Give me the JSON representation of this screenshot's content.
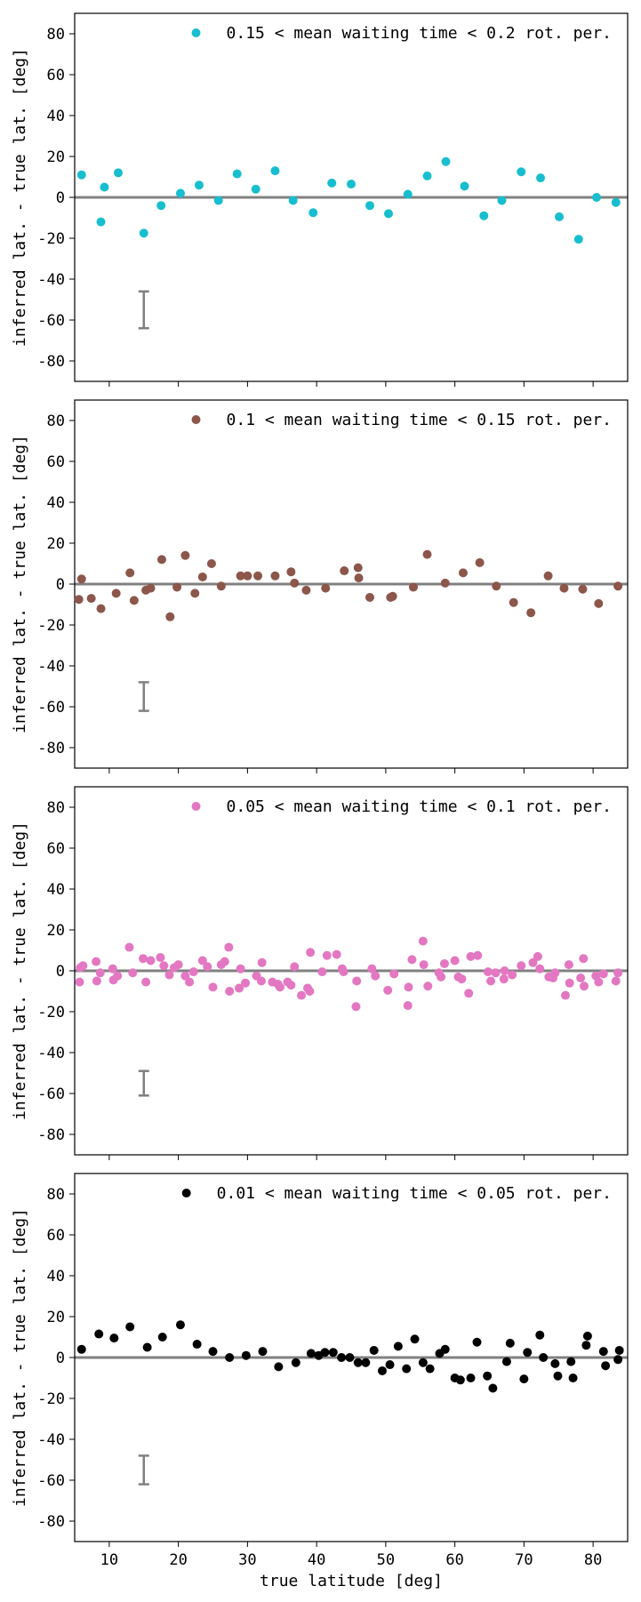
{
  "figure": {
    "xlabel": "true latitude [deg]",
    "x_ticks": [
      10,
      20,
      30,
      40,
      50,
      60,
      70,
      80
    ],
    "y_ticks": [
      -80,
      -60,
      -40,
      -20,
      0,
      20,
      40,
      60,
      80
    ]
  },
  "chart_data": [
    {
      "type": "scatter",
      "title": "",
      "xlabel": "",
      "ylabel": "inferred lat. - true lat. [deg]",
      "xlim": [
        5,
        85
      ],
      "ylim": [
        -90,
        90
      ],
      "zero_line": true,
      "grid": false,
      "legend_position": "top-right",
      "error_bar": {
        "x": 15,
        "y_low": -64,
        "y_high": -46,
        "color": "#808080"
      },
      "series": [
        {
          "name": "0.15 < mean waiting time < 0.2 rot. per.",
          "color": "#17becf",
          "points": [
            [
              6,
              11
            ],
            [
              8.8,
              -12
            ],
            [
              9.3,
              5
            ],
            [
              11.3,
              12
            ],
            [
              15,
              -17.5
            ],
            [
              17.5,
              -4
            ],
            [
              20.3,
              2
            ],
            [
              23,
              6
            ],
            [
              25.8,
              -1.5
            ],
            [
              28.5,
              11.5
            ],
            [
              31.2,
              4
            ],
            [
              34,
              13
            ],
            [
              36.6,
              -1.5
            ],
            [
              39.5,
              -7.5
            ],
            [
              42.2,
              7
            ],
            [
              45,
              6.5
            ],
            [
              47.7,
              -4
            ],
            [
              50.4,
              -8
            ],
            [
              53.2,
              1.5
            ],
            [
              56,
              10.5
            ],
            [
              58.7,
              17.5
            ],
            [
              61.4,
              5.5
            ],
            [
              64.2,
              -9
            ],
            [
              66.8,
              -1.5
            ],
            [
              69.6,
              12.5
            ],
            [
              72.4,
              9.5
            ],
            [
              75.1,
              -9.5
            ],
            [
              77.9,
              -20.5
            ],
            [
              80.5,
              0
            ],
            [
              83.3,
              -2.5
            ]
          ]
        }
      ]
    },
    {
      "type": "scatter",
      "title": "",
      "xlabel": "",
      "ylabel": "inferred lat. - true lat. [deg]",
      "xlim": [
        5,
        85
      ],
      "ylim": [
        -90,
        90
      ],
      "zero_line": true,
      "grid": false,
      "legend_position": "top-right",
      "error_bar": {
        "x": 15,
        "y_low": -62,
        "y_high": -48,
        "color": "#808080"
      },
      "series": [
        {
          "name": "0.1 < mean waiting time < 0.15 rot. per.",
          "color": "#8c564b",
          "points": [
            [
              5.6,
              -7.5
            ],
            [
              6,
              2.5
            ],
            [
              7.4,
              -7
            ],
            [
              8.8,
              -12
            ],
            [
              11,
              -4.5
            ],
            [
              13,
              5.5
            ],
            [
              13.6,
              -8
            ],
            [
              15.3,
              -3
            ],
            [
              16,
              -2
            ],
            [
              17.6,
              12
            ],
            [
              18.8,
              -16
            ],
            [
              19.8,
              -1.5
            ],
            [
              21,
              14
            ],
            [
              22.4,
              -4.5
            ],
            [
              23.5,
              3.5
            ],
            [
              24.8,
              10
            ],
            [
              26.2,
              -1
            ],
            [
              29,
              4
            ],
            [
              30,
              4
            ],
            [
              31.5,
              4
            ],
            [
              34,
              4
            ],
            [
              36.3,
              6
            ],
            [
              36.8,
              0.5
            ],
            [
              38.5,
              -3
            ],
            [
              41.3,
              -2
            ],
            [
              44,
              6.5
            ],
            [
              46,
              8
            ],
            [
              46.1,
              3
            ],
            [
              47.7,
              -6.5
            ],
            [
              50.7,
              -6.5
            ],
            [
              51,
              -6
            ],
            [
              54,
              -1.5
            ],
            [
              56,
              14.5
            ],
            [
              58.6,
              0.5
            ],
            [
              61.2,
              5.5
            ],
            [
              63.6,
              10.5
            ],
            [
              66,
              -1
            ],
            [
              68.5,
              -9
            ],
            [
              71,
              -14
            ],
            [
              73.5,
              4
            ],
            [
              75.8,
              -2
            ],
            [
              78.5,
              -2.5
            ],
            [
              80.8,
              -9.5
            ],
            [
              83.6,
              -1
            ]
          ]
        }
      ]
    },
    {
      "type": "scatter",
      "title": "",
      "xlabel": "",
      "ylabel": "inferred lat. - true lat. [deg]",
      "xlim": [
        5,
        85
      ],
      "ylim": [
        -90,
        90
      ],
      "zero_line": true,
      "grid": false,
      "legend_position": "top-right",
      "error_bar": {
        "x": 15,
        "y_low": -61,
        "y_high": -49,
        "color": "#808080"
      },
      "series": [
        {
          "name": "0.05 < mean waiting time < 0.1 rot. per.",
          "color": "#e377c2",
          "points": [
            [
              5.7,
              -5.5
            ],
            [
              5.8,
              1.5
            ],
            [
              6.2,
              2.5
            ],
            [
              8.1,
              4.5
            ],
            [
              8.2,
              -5
            ],
            [
              8.7,
              -1
            ],
            [
              10.5,
              1
            ],
            [
              10.6,
              -4.5
            ],
            [
              11.2,
              -2.5
            ],
            [
              12.9,
              11.5
            ],
            [
              13.4,
              -1
            ],
            [
              14.9,
              6
            ],
            [
              15.3,
              -5.5
            ],
            [
              16,
              5
            ],
            [
              17.4,
              6.5
            ],
            [
              17.9,
              2.5
            ],
            [
              18.7,
              -2
            ],
            [
              19.4,
              1.5
            ],
            [
              20,
              3
            ],
            [
              21,
              -2.5
            ],
            [
              21.6,
              -5.5
            ],
            [
              22.2,
              -0.5
            ],
            [
              23.5,
              5
            ],
            [
              24.2,
              2
            ],
            [
              25,
              -8
            ],
            [
              26.2,
              3
            ],
            [
              26.7,
              4.5
            ],
            [
              27.3,
              11.5
            ],
            [
              27.4,
              -10
            ],
            [
              28.8,
              -8.5
            ],
            [
              29,
              1
            ],
            [
              29.7,
              -6
            ],
            [
              31.3,
              -2.5
            ],
            [
              32,
              -5
            ],
            [
              32.1,
              4
            ],
            [
              33.6,
              -5.5
            ],
            [
              34.4,
              -6.5
            ],
            [
              34.7,
              -8
            ],
            [
              35.8,
              -5.5
            ],
            [
              36.3,
              -7
            ],
            [
              36.8,
              2
            ],
            [
              37.8,
              -12
            ],
            [
              38.7,
              -8.5
            ],
            [
              39,
              -10
            ],
            [
              39.1,
              9
            ],
            [
              40.8,
              -0.5
            ],
            [
              41.5,
              7.5
            ],
            [
              42.9,
              8
            ],
            [
              43.7,
              1
            ],
            [
              43.9,
              -0.5
            ],
            [
              45.7,
              -17.5
            ],
            [
              45.8,
              -5
            ],
            [
              48,
              1
            ],
            [
              48.5,
              -2.5
            ],
            [
              50.3,
              -9.5
            ],
            [
              51.2,
              -1.5
            ],
            [
              53.2,
              -17
            ],
            [
              53.3,
              -8
            ],
            [
              53.8,
              5.5
            ],
            [
              55.4,
              14.5
            ],
            [
              55.5,
              3
            ],
            [
              56.1,
              -7.5
            ],
            [
              57.7,
              -1
            ],
            [
              58,
              -3
            ],
            [
              58.5,
              3.5
            ],
            [
              60,
              5
            ],
            [
              60.5,
              -3
            ],
            [
              61,
              -4
            ],
            [
              62,
              -11
            ],
            [
              62.3,
              7
            ],
            [
              63.3,
              7.5
            ],
            [
              64.8,
              -0.5
            ],
            [
              65.2,
              -5
            ],
            [
              65.9,
              -1
            ],
            [
              67.1,
              -4
            ],
            [
              67.2,
              0
            ],
            [
              68.3,
              -2
            ],
            [
              69.6,
              2.5
            ],
            [
              71.3,
              4
            ],
            [
              72,
              7
            ],
            [
              72.3,
              1
            ],
            [
              73.6,
              -3
            ],
            [
              74.2,
              -3.5
            ],
            [
              74.5,
              -1
            ],
            [
              76,
              -12
            ],
            [
              76.5,
              3
            ],
            [
              76.6,
              -6
            ],
            [
              78.2,
              -3.5
            ],
            [
              78.6,
              6
            ],
            [
              78.7,
              -7.5
            ],
            [
              80.4,
              -2.5
            ],
            [
              80.8,
              -5.5
            ],
            [
              81.5,
              -1.5
            ],
            [
              83.3,
              -5
            ],
            [
              83.6,
              -1
            ]
          ]
        }
      ]
    },
    {
      "type": "scatter",
      "title": "",
      "xlabel": "true latitude [deg]",
      "ylabel": "inferred lat. - true lat. [deg]",
      "xlim": [
        5,
        85
      ],
      "ylim": [
        -90,
        90
      ],
      "zero_line": true,
      "grid": false,
      "legend_position": "top-right",
      "error_bar": {
        "x": 15,
        "y_low": -62,
        "y_high": -48,
        "color": "#808080"
      },
      "series": [
        {
          "name": "0.01 < mean waiting time < 0.05 rot. per.",
          "color": "#000000",
          "points": [
            [
              6,
              4
            ],
            [
              8.5,
              11.5
            ],
            [
              10.7,
              9.5
            ],
            [
              13,
              15
            ],
            [
              15.5,
              5
            ],
            [
              17.7,
              10
            ],
            [
              20.3,
              16
            ],
            [
              22.7,
              6.5
            ],
            [
              25,
              3
            ],
            [
              27.4,
              0
            ],
            [
              29.8,
              1
            ],
            [
              32.2,
              3
            ],
            [
              34.5,
              -4.5
            ],
            [
              37,
              -2.5
            ],
            [
              39.2,
              2
            ],
            [
              40.3,
              1
            ],
            [
              41.2,
              2.5
            ],
            [
              42.4,
              2.5
            ],
            [
              43.6,
              0
            ],
            [
              44.8,
              0
            ],
            [
              46,
              -2.5
            ],
            [
              47.1,
              -2.5
            ],
            [
              48.3,
              3.5
            ],
            [
              49.5,
              -6.5
            ],
            [
              50.6,
              -3.5
            ],
            [
              51.8,
              5.5
            ],
            [
              53,
              -5.5
            ],
            [
              54.2,
              9
            ],
            [
              55.4,
              -2.5
            ],
            [
              56.4,
              -5.5
            ],
            [
              57.8,
              2
            ],
            [
              58.6,
              4
            ],
            [
              60,
              -10
            ],
            [
              60.8,
              -11
            ],
            [
              62.3,
              -10
            ],
            [
              63.2,
              7.5
            ],
            [
              64.7,
              -9
            ],
            [
              65.5,
              -15
            ],
            [
              67.5,
              -2
            ],
            [
              68,
              7
            ],
            [
              70,
              -10.5
            ],
            [
              70.5,
              2.5
            ],
            [
              72.3,
              11
            ],
            [
              72.8,
              0
            ],
            [
              74.5,
              -3
            ],
            [
              74.9,
              -9
            ],
            [
              76.8,
              -2
            ],
            [
              77.1,
              -10
            ],
            [
              79,
              6
            ],
            [
              79.2,
              10.5
            ],
            [
              81.5,
              3
            ],
            [
              81.8,
              -4
            ],
            [
              83.6,
              -1
            ],
            [
              83.8,
              3.5
            ]
          ]
        }
      ]
    }
  ]
}
